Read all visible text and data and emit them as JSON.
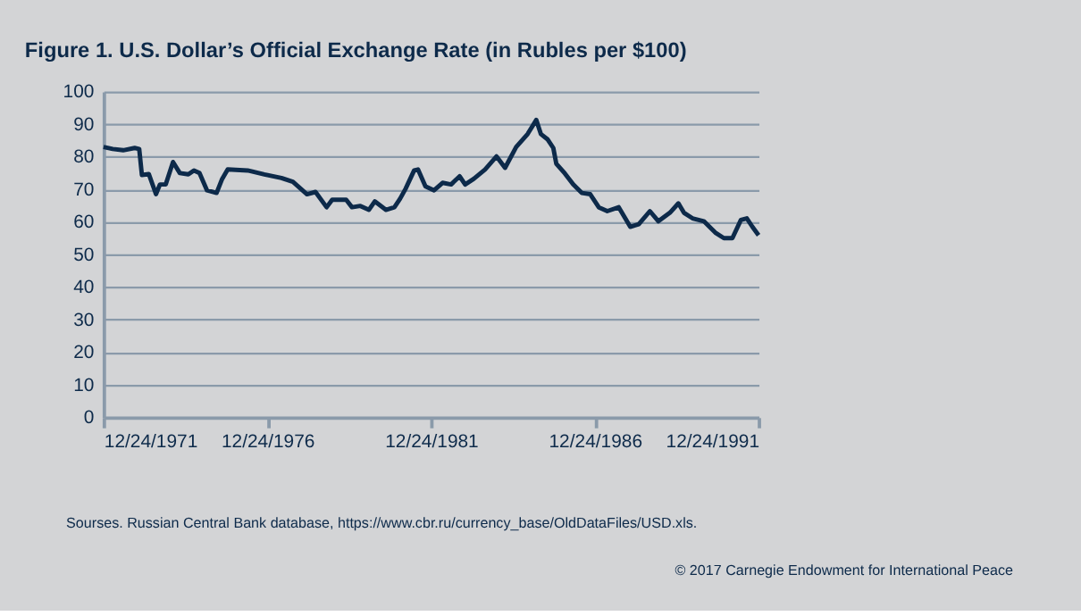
{
  "chart_data": {
    "type": "line",
    "title": "Figure 1. U.S. Dollar’s Official Exchange Rate (in Rubles per $100)",
    "x": [
      "1971-12-24",
      "1972-04-05",
      "1972-07-30",
      "1972-12-05",
      "1973-01-25",
      "1973-02-24",
      "1973-05-12",
      "1973-07-31",
      "1973-09-13",
      "1973-11-17",
      "1974-02-06",
      "1974-04-23",
      "1974-07-27",
      "1974-09-27",
      "1974-11-28",
      "1975-02-20",
      "1975-06-07",
      "1975-08-08",
      "1975-10-09",
      "1976-05-19",
      "1976-11-21",
      "1977-05-30",
      "1977-10-05",
      "1978-03-11",
      "1978-06-14",
      "1978-10-16",
      "1978-12-17",
      "1979-05-22",
      "1979-07-26",
      "1979-10-27",
      "1980-01-30",
      "1980-04-05",
      "1980-08-07",
      "1980-11-10",
      "1981-01-12",
      "1981-03-15",
      "1981-06-18",
      "1981-07-31",
      "1981-10-22",
      "1982-01-26",
      "1982-05-01",
      "1982-08-04",
      "1982-11-07",
      "1983-01-08",
      "1983-04-13",
      "1983-08-18",
      "1983-12-24",
      "1984-03-28",
      "1984-07-30",
      "1984-12-05",
      "1985-03-11",
      "1985-05-01",
      "1985-07-17",
      "1985-09-17",
      "1985-10-20",
      "1986-01-23",
      "1986-04-27",
      "1986-07-31",
      "1986-11-03",
      "1987-02-06",
      "1987-05-12",
      "1987-09-17",
      "1988-01-23",
      "1988-04-27",
      "1988-08-29",
      "1988-12-02",
      "1989-04-09",
      "1989-07-13",
      "1989-09-13",
      "1989-12-17",
      "1990-04-23",
      "1990-08-29",
      "1990-12-02",
      "1991-03-07",
      "1991-06-10",
      "1991-08-15",
      "1991-10-16",
      "1991-12-24"
    ],
    "series": [
      {
        "color": "#0d2a4a",
        "values": [
          83,
          82.4,
          82,
          82.7,
          82.4,
          74.4,
          74.7,
          68.5,
          71.5,
          71.5,
          78.4,
          75,
          74.6,
          75.8,
          75,
          69.7,
          68.9,
          73.2,
          76.1,
          75.8,
          74.6,
          73.5,
          72.3,
          68.5,
          69.2,
          64.5,
          66.8,
          66.8,
          64.5,
          64.9,
          63.7,
          66.3,
          63.7,
          64.5,
          67.1,
          70.2,
          75.8,
          76.1,
          70.9,
          69.7,
          72,
          71.5,
          74,
          71.5,
          73.2,
          76.1,
          80.1,
          76.6,
          83,
          87,
          91.3,
          87,
          85.3,
          82.7,
          77.9,
          74.9,
          71.5,
          68.9,
          68.5,
          64.5,
          63.3,
          64.5,
          58.5,
          59.3,
          63.3,
          60.2,
          62.8,
          65.7,
          62.8,
          61.1,
          60.2,
          56.7,
          55,
          55,
          60.6,
          61.1,
          58.5,
          55.9
        ]
      }
    ],
    "xlim": [
      "1971-12-24",
      "1991-12-24"
    ],
    "xticks": [
      {
        "value": "1971-12-24",
        "label": "12/24/1971"
      },
      {
        "value": "1976-12-24",
        "label": "12/24/1976"
      },
      {
        "value": "1981-12-24",
        "label": "12/24/1981"
      },
      {
        "value": "1986-12-24",
        "label": "12/24/1986"
      },
      {
        "value": "1991-12-24",
        "label": "12/24/1991"
      }
    ],
    "ylim": [
      0,
      100
    ],
    "yticks": [
      0,
      10,
      20,
      30,
      40,
      50,
      60,
      70,
      80,
      90,
      100
    ],
    "grid": "y",
    "line_style": "solid",
    "annotations": [
      "Sourses. Russian Central Bank database, https://www.cbr.ru/currency_base/OldDataFiles/USD.xls.",
      "© 2017 Carnegie Endowment for International Peace"
    ]
  }
}
